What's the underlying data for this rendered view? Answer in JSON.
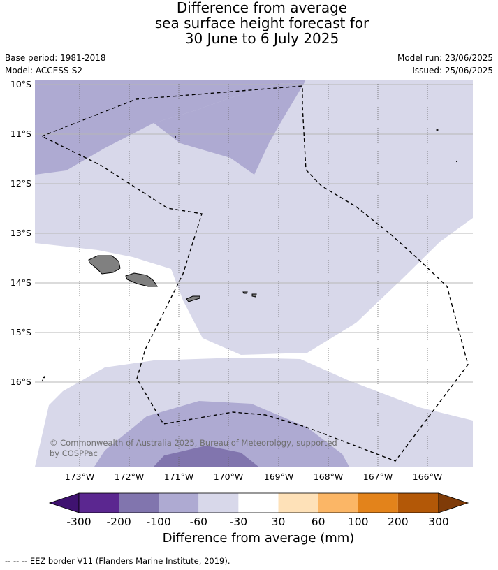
{
  "title": {
    "line1": "Difference from average",
    "line2": "sea surface height forecast for",
    "line3": "30 June to 6 July 2025"
  },
  "meta": {
    "base_period": "Base period: 1981-2018",
    "model": "Model: ACCESS-S2",
    "model_run": "Model run: 23/06/2025",
    "issued": "Issued: 25/06/2025"
  },
  "map": {
    "lat_labels": [
      "10°S",
      "11°S",
      "12°S",
      "13°S",
      "14°S",
      "15°S",
      "16°S"
    ],
    "lon_labels": [
      "173°W",
      "172°W",
      "171°W",
      "170°W",
      "169°W",
      "168°W",
      "167°W",
      "166°W"
    ],
    "copyright": [
      "© Commonwealth of Australia 2025, Bureau of Meteorology, supported",
      "by COSPPac"
    ],
    "colors": {
      "land": "#808080",
      "lev_-100_-60": "#aeaad2",
      "lev_-60_-30": "#d8d8ea",
      "lev_-200_-100": "#8175ae"
    }
  },
  "colorbar": {
    "tick_labels": [
      "-300",
      "-200",
      "-100",
      "-60",
      "-30",
      "30",
      "60",
      "100",
      "200",
      "300"
    ],
    "colors": [
      "#3f1270",
      "#5b2790",
      "#8175ae",
      "#aeaad2",
      "#d8d8ea",
      "#ffffff",
      "#fee1b8",
      "#fbb666",
      "#e3831b",
      "#b35807",
      "#7f3b08"
    ],
    "label": "Difference from average (mm)"
  },
  "footer": "--  --  -- EEZ border V11 (Flanders Marine Institute, 2019)."
}
